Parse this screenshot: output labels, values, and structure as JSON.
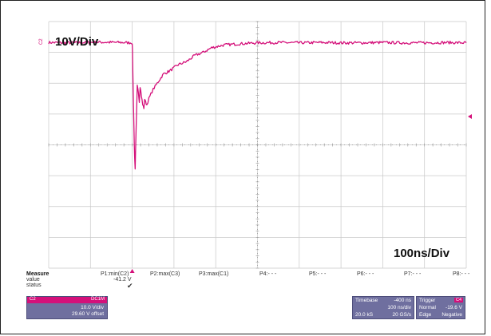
{
  "overlay": {
    "vertical_scale": "10V/Div",
    "horizontal_scale": "100ns/Div"
  },
  "screen": {
    "channel_marker": "C2",
    "colors": {
      "trace": "#d4107a",
      "grid": "#c8c8c8",
      "axis_ticks": "#9a9a9a",
      "panel": "#6f6f9f"
    }
  },
  "chart_data": {
    "type": "line",
    "title": "",
    "xlabel": "",
    "ylabel": "",
    "x_divisions": 10,
    "y_divisions": 8,
    "x_per_div_ns": 100,
    "y_per_div_v": 10,
    "series": [
      {
        "x": [
          -400,
          -340,
          -280,
          -220,
          -200,
          -199,
          -197,
          -195,
          -193,
          -190,
          -188,
          -185,
          -183,
          -181,
          -178,
          -175,
          -172,
          -170,
          -168,
          -165,
          -160,
          -150,
          -140,
          -125,
          -110,
          -90,
          -70,
          -50,
          -30,
          -10,
          20,
          60,
          100,
          150,
          200,
          250,
          300,
          350,
          400,
          450,
          500,
          550,
          600
        ],
        "y": [
          0.2,
          0.1,
          0.3,
          0.2,
          0.1,
          -5,
          -20,
          -33,
          -41.2,
          -25,
          -14,
          -16,
          -19,
          -14,
          -17,
          -20,
          -21,
          -18,
          -19,
          -20,
          -18,
          -15,
          -13,
          -10,
          -9,
          -7,
          -6,
          -4,
          -3,
          -1.5,
          -0.6,
          -0.2,
          0.1,
          0.2,
          0.1,
          0.2,
          0.1,
          0.1,
          0.2,
          0.1,
          0.1,
          0.2,
          0.1
        ]
      }
    ]
  },
  "measure": {
    "title": "Measure",
    "row_labels": [
      "value",
      "status"
    ],
    "params": [
      {
        "label": "P1:min(C2)",
        "value": "-41.2 V",
        "status": "✔"
      },
      {
        "label": "P2:max(C3)",
        "value": "",
        "status": ""
      },
      {
        "label": "P3:max(C1)",
        "value": "",
        "status": ""
      },
      {
        "label": "P4:- - -",
        "value": "",
        "status": ""
      },
      {
        "label": "P5:- - -",
        "value": "",
        "status": ""
      },
      {
        "label": "P6:- - -",
        "value": "",
        "status": ""
      },
      {
        "label": "P7:- - -",
        "value": "",
        "status": ""
      },
      {
        "label": "P8:- - -",
        "value": "",
        "status": ""
      }
    ]
  },
  "channel_box": {
    "name": "C2",
    "tag": "DC1M",
    "scale": "10.0 V/div",
    "offset": "29.60 V offset"
  },
  "timebase": {
    "title": "Timebase",
    "delay": "-400 ns",
    "per_div": "100 ns/div",
    "record": "20.0 kS",
    "rate": "20 GS/s"
  },
  "trigger": {
    "title": "Trigger",
    "channel": "C4",
    "mode": "Normal",
    "level": "-19.6 V",
    "type": "Edge",
    "slope": "Negative"
  }
}
